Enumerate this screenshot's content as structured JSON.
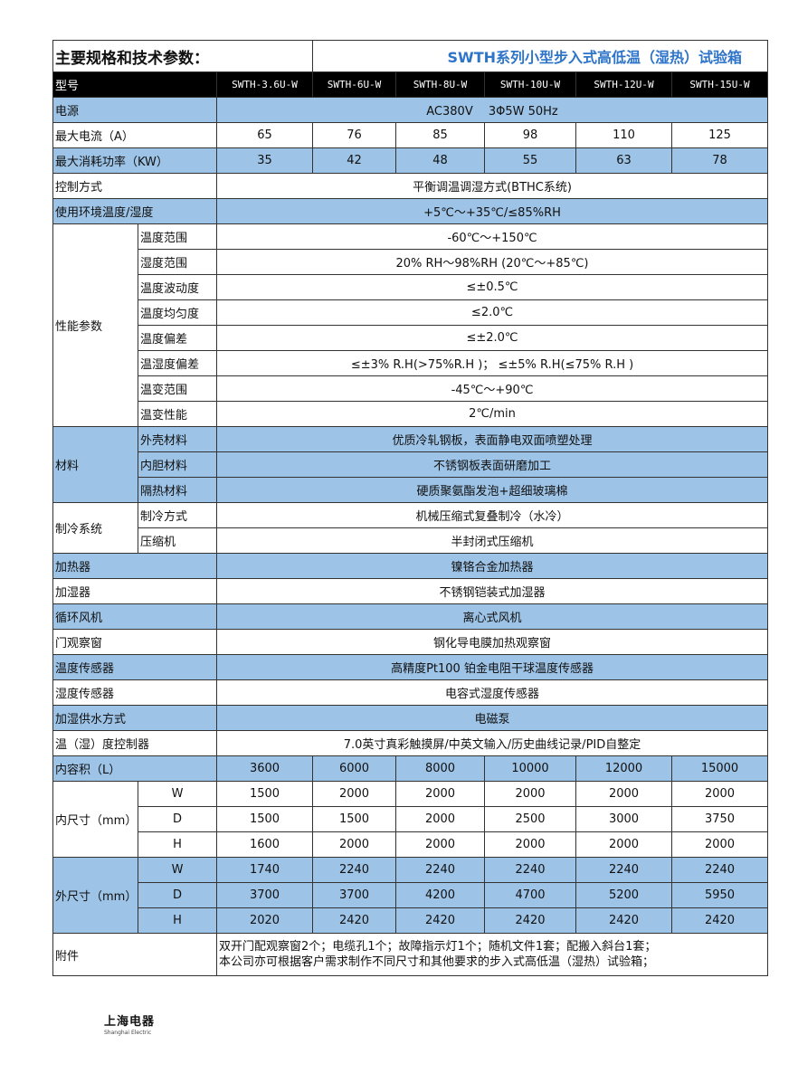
{
  "title": {
    "left": "主要规格和技术参数：",
    "right": "SWTH系列小型步入式高低温（湿热）试验箱"
  },
  "header": {
    "label": "型号",
    "models": [
      "SWTH-3.6U-W",
      "SWTH-6U-W",
      "SWTH-8U-W",
      "SWTH-10U-W",
      "SWTH-12U-W",
      "SWTH-15U-W"
    ]
  },
  "colors": {
    "shaded_row": "#9dc3e6",
    "header_bg": "#000000",
    "title_accent": "#2e74c9"
  },
  "rows": [
    {
      "label": "电源",
      "value": "AC380V　 3Φ5W 50Hz",
      "shaded": true
    },
    {
      "label": "最大电流（A）",
      "values": [
        "65",
        "76",
        "85",
        "98",
        "110",
        "125"
      ],
      "shaded": false
    },
    {
      "label": "最大消耗功率（KW）",
      "values": [
        "35",
        "42",
        "48",
        "55",
        "63",
        "78"
      ],
      "shaded": true
    },
    {
      "label": "控制方式",
      "value": "平衡调温调湿方式(BTHC系统)",
      "shaded": false
    },
    {
      "label": "使用环境温度/湿度",
      "value": "+5℃～+35℃/≤85%RH",
      "shaded": true
    },
    {
      "label": "性能参数",
      "shaded": false,
      "items": [
        {
          "sub": "温度范围",
          "value": "-60℃～+150℃"
        },
        {
          "sub": "湿度范围",
          "value": "20% RH～98%RH (20℃～+85℃)"
        },
        {
          "sub": "温度波动度",
          "value": "≤±0.5℃"
        },
        {
          "sub": "温度均匀度",
          "value": "≤2.0℃"
        },
        {
          "sub": "温度偏差",
          "value": "≤±2.0℃"
        },
        {
          "sub": "温湿度偏差",
          "value": "≤±3% R.H(>75%R.H )； ≤±5% R.H(≤75% R.H )"
        },
        {
          "sub": "温变范围",
          "value": "-45℃～+90℃"
        },
        {
          "sub": "温变性能",
          "value": "2℃/min"
        }
      ]
    },
    {
      "label": "材料",
      "shaded": true,
      "items": [
        {
          "sub": "外壳材料",
          "value": "优质冷轧钢板，表面静电双面喷塑处理"
        },
        {
          "sub": "内胆材料",
          "value": "不锈钢板表面研磨加工"
        },
        {
          "sub": "隔热材料",
          "value": "硬质聚氨酯发泡+超细玻璃棉"
        }
      ]
    },
    {
      "label": "制冷系统",
      "shaded": false,
      "items": [
        {
          "sub": "制冷方式",
          "value": "机械压缩式复叠制冷（水冷）"
        },
        {
          "sub": "压缩机",
          "value": "半封闭式压缩机"
        }
      ]
    },
    {
      "label": "加热器",
      "value": "镍铬合金加热器",
      "shaded": true
    },
    {
      "label": "加湿器",
      "value": "不锈钢铠装式加湿器",
      "shaded": false
    },
    {
      "label": "循环风机",
      "value": "离心式风机",
      "shaded": true
    },
    {
      "label": "门观察窗",
      "value": "钢化导电膜加热观察窗",
      "shaded": false
    },
    {
      "label": "温度传感器",
      "value": "高精度Pt100 铂金电阻干球温度传感器",
      "shaded": true
    },
    {
      "label": "湿度传感器",
      "value": "电容式湿度传感器",
      "shaded": false
    },
    {
      "label": "加湿供水方式",
      "value": "电磁泵",
      "shaded": true
    },
    {
      "label": "温（湿）度控制器",
      "value": "7.0英寸真彩触摸屏/中英文输入/历史曲线记录/PID自整定",
      "shaded": false
    },
    {
      "label": "内容积（L）",
      "values": [
        "3600",
        "6000",
        "8000",
        "10000",
        "12000",
        "15000"
      ],
      "shaded": true
    },
    {
      "label": "内尺寸（mm）",
      "shaded": false,
      "items": [
        {
          "sub": "W",
          "values": [
            "1500",
            "2000",
            "2000",
            "2000",
            "2000",
            "2000"
          ]
        },
        {
          "sub": "D",
          "values": [
            "1500",
            "1500",
            "2000",
            "2500",
            "3000",
            "3750"
          ]
        },
        {
          "sub": "H",
          "values": [
            "1600",
            "2000",
            "2000",
            "2000",
            "2000",
            "2000"
          ]
        }
      ]
    },
    {
      "label": "外尺寸（mm）",
      "shaded": true,
      "items": [
        {
          "sub": "W",
          "values": [
            "1740",
            "2240",
            "2240",
            "2240",
            "2240",
            "2240"
          ]
        },
        {
          "sub": "D",
          "values": [
            "3700",
            "3700",
            "4200",
            "4700",
            "5200",
            "5950"
          ]
        },
        {
          "sub": "H",
          "values": [
            "2020",
            "2420",
            "2420",
            "2420",
            "2420",
            "2420"
          ]
        }
      ]
    }
  ],
  "accessories": {
    "label": "附件",
    "lines": [
      "双开门配观察窗2个；电缆孔1个；故障指示灯1个；随机文件1套；配搬入斜台1套；",
      "本公司亦可根据客户需求制作不同尺寸和其他要求的步入式高低温（湿热）试验箱；"
    ]
  },
  "logo": {
    "cn": "上海电器",
    "en": "Shanghai Electric"
  }
}
